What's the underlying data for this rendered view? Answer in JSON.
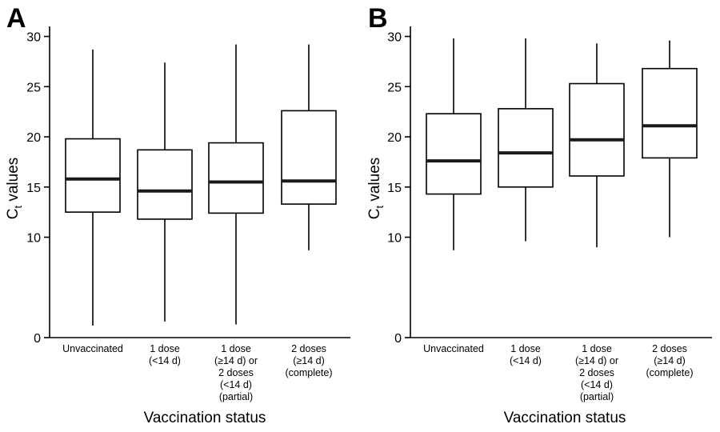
{
  "chart_data": [
    {
      "type": "box",
      "panel": "A",
      "xlabel": "Vaccination status",
      "ylabel_main": "C",
      "ylabel_sub": "t",
      "ylabel_rest": " values",
      "ylim": [
        0,
        31
      ],
      "yticks": [
        0,
        10,
        15,
        20,
        25,
        30
      ],
      "categories": [
        [
          "Unvaccinated"
        ],
        [
          "1 dose",
          "(<14 d)"
        ],
        [
          "1 dose",
          "(≥14 d) or",
          "2 doses",
          "(<14 d)",
          "(partial)"
        ],
        [
          "2 doses",
          "(≥14 d)",
          "(complete)"
        ]
      ],
      "boxes": [
        {
          "min": 1.2,
          "q1": 12.5,
          "median": 15.8,
          "q3": 19.8,
          "max": 28.7
        },
        {
          "min": 1.6,
          "q1": 11.8,
          "median": 14.6,
          "q3": 18.7,
          "max": 27.4
        },
        {
          "min": 1.3,
          "q1": 12.4,
          "median": 15.5,
          "q3": 19.4,
          "max": 29.2
        },
        {
          "min": 8.7,
          "q1": 13.3,
          "median": 15.6,
          "q3": 22.6,
          "max": 29.2
        }
      ]
    },
    {
      "type": "box",
      "panel": "B",
      "xlabel": "Vaccination status",
      "ylabel_main": "C",
      "ylabel_sub": "t",
      "ylabel_rest": " values",
      "ylim": [
        0,
        31
      ],
      "yticks": [
        0,
        10,
        15,
        20,
        25,
        30
      ],
      "categories": [
        [
          "Unvaccinated"
        ],
        [
          "1 dose",
          "(<14 d)"
        ],
        [
          "1 dose",
          "(≥14 d) or",
          "2 doses",
          "(<14 d)",
          "(partial)"
        ],
        [
          "2 doses",
          "(≥14 d)",
          "(complete)"
        ]
      ],
      "boxes": [
        {
          "min": 8.7,
          "q1": 14.3,
          "median": 17.6,
          "q3": 22.3,
          "max": 29.8
        },
        {
          "min": 9.6,
          "q1": 15.0,
          "median": 18.4,
          "q3": 22.8,
          "max": 29.8
        },
        {
          "min": 9.0,
          "q1": 16.1,
          "median": 19.7,
          "q3": 25.3,
          "max": 29.3
        },
        {
          "min": 10.0,
          "q1": 17.9,
          "median": 21.1,
          "q3": 26.8,
          "max": 29.6
        }
      ]
    }
  ]
}
